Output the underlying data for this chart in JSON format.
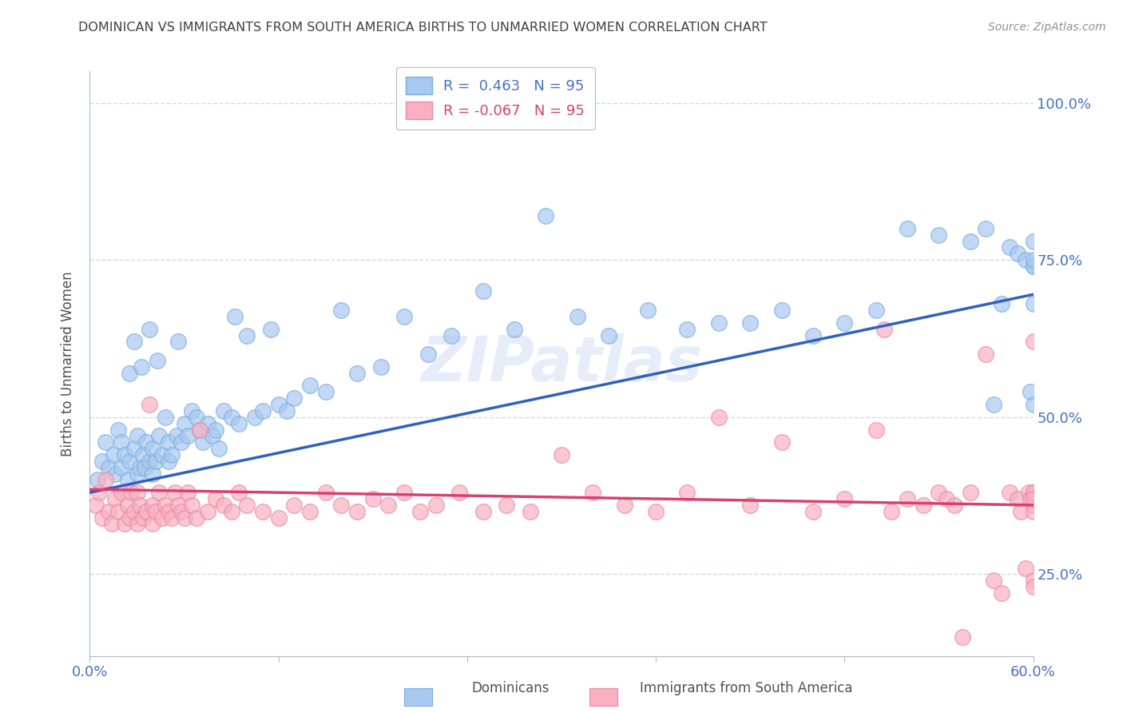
{
  "title": "DOMINICAN VS IMMIGRANTS FROM SOUTH AMERICA BIRTHS TO UNMARRIED WOMEN CORRELATION CHART",
  "source": "Source: ZipAtlas.com",
  "ylabel": "Births to Unmarried Women",
  "ytick_labels": [
    "25.0%",
    "50.0%",
    "75.0%",
    "100.0%"
  ],
  "ytick_values": [
    0.25,
    0.5,
    0.75,
    1.0
  ],
  "xlim": [
    0.0,
    0.6
  ],
  "ylim": [
    0.12,
    1.05
  ],
  "blue_R": 0.463,
  "blue_N": 95,
  "pink_R": -0.067,
  "pink_N": 95,
  "legend_label1": "Dominicans",
  "legend_label2": "Immigrants from South America",
  "watermark": "ZIPatlas",
  "dot_color_blue": "#a8c8f0",
  "dot_edge_blue": "#7aaee0",
  "dot_color_pink": "#f8b0c0",
  "dot_edge_pink": "#e888a8",
  "line_color_blue": "#3060c0",
  "line_color_pink": "#d84070",
  "title_color": "#404040",
  "source_color": "#909090",
  "axis_label_color": "#4472c4",
  "ytick_color": "#4472c4",
  "xtick_color": "#4472c4",
  "grid_color": "#d0d8e8",
  "background_color": "#ffffff",
  "blue_line_x0": 0.0,
  "blue_line_y0": 0.38,
  "blue_line_x1": 0.6,
  "blue_line_y1": 0.695,
  "pink_line_x0": 0.0,
  "pink_line_y0": 0.385,
  "pink_line_x1": 0.6,
  "pink_line_y1": 0.36,
  "blue_dots_x": [
    0.005,
    0.008,
    0.01,
    0.012,
    0.015,
    0.016,
    0.018,
    0.02,
    0.02,
    0.022,
    0.024,
    0.025,
    0.025,
    0.028,
    0.028,
    0.03,
    0.03,
    0.032,
    0.033,
    0.034,
    0.035,
    0.036,
    0.038,
    0.038,
    0.04,
    0.04,
    0.042,
    0.043,
    0.044,
    0.046,
    0.048,
    0.05,
    0.05,
    0.052,
    0.055,
    0.056,
    0.058,
    0.06,
    0.062,
    0.065,
    0.068,
    0.07,
    0.072,
    0.075,
    0.078,
    0.08,
    0.082,
    0.085,
    0.09,
    0.092,
    0.095,
    0.1,
    0.105,
    0.11,
    0.115,
    0.12,
    0.125,
    0.13,
    0.14,
    0.15,
    0.16,
    0.17,
    0.185,
    0.2,
    0.215,
    0.23,
    0.25,
    0.27,
    0.29,
    0.31,
    0.33,
    0.355,
    0.38,
    0.4,
    0.42,
    0.44,
    0.46,
    0.48,
    0.5,
    0.52,
    0.54,
    0.56,
    0.57,
    0.575,
    0.58,
    0.585,
    0.59,
    0.595,
    0.598,
    0.6,
    0.6,
    0.6,
    0.6,
    0.6,
    0.6
  ],
  "blue_dots_y": [
    0.4,
    0.43,
    0.46,
    0.42,
    0.44,
    0.41,
    0.48,
    0.42,
    0.46,
    0.44,
    0.4,
    0.43,
    0.57,
    0.45,
    0.62,
    0.41,
    0.47,
    0.42,
    0.58,
    0.44,
    0.42,
    0.46,
    0.43,
    0.64,
    0.41,
    0.45,
    0.43,
    0.59,
    0.47,
    0.44,
    0.5,
    0.43,
    0.46,
    0.44,
    0.47,
    0.62,
    0.46,
    0.49,
    0.47,
    0.51,
    0.5,
    0.48,
    0.46,
    0.49,
    0.47,
    0.48,
    0.45,
    0.51,
    0.5,
    0.66,
    0.49,
    0.63,
    0.5,
    0.51,
    0.64,
    0.52,
    0.51,
    0.53,
    0.55,
    0.54,
    0.67,
    0.57,
    0.58,
    0.66,
    0.6,
    0.63,
    0.7,
    0.64,
    0.82,
    0.66,
    0.63,
    0.67,
    0.64,
    0.65,
    0.65,
    0.67,
    0.63,
    0.65,
    0.67,
    0.8,
    0.79,
    0.78,
    0.8,
    0.52,
    0.68,
    0.77,
    0.76,
    0.75,
    0.54,
    0.52,
    0.68,
    0.74,
    0.78,
    0.74,
    0.75
  ],
  "pink_dots_x": [
    0.004,
    0.006,
    0.008,
    0.01,
    0.012,
    0.014,
    0.016,
    0.018,
    0.02,
    0.022,
    0.024,
    0.025,
    0.026,
    0.028,
    0.03,
    0.03,
    0.032,
    0.034,
    0.036,
    0.038,
    0.04,
    0.04,
    0.042,
    0.044,
    0.046,
    0.048,
    0.05,
    0.052,
    0.054,
    0.056,
    0.058,
    0.06,
    0.062,
    0.065,
    0.068,
    0.07,
    0.075,
    0.08,
    0.085,
    0.09,
    0.095,
    0.1,
    0.11,
    0.12,
    0.13,
    0.14,
    0.15,
    0.16,
    0.17,
    0.18,
    0.19,
    0.2,
    0.21,
    0.22,
    0.235,
    0.25,
    0.265,
    0.28,
    0.3,
    0.32,
    0.34,
    0.36,
    0.38,
    0.4,
    0.42,
    0.44,
    0.46,
    0.48,
    0.5,
    0.505,
    0.51,
    0.52,
    0.53,
    0.54,
    0.545,
    0.55,
    0.555,
    0.56,
    0.57,
    0.575,
    0.58,
    0.585,
    0.59,
    0.592,
    0.595,
    0.597,
    0.598,
    0.6,
    0.6,
    0.6,
    0.6,
    0.6,
    0.6,
    0.6,
    0.6
  ],
  "pink_dots_y": [
    0.36,
    0.38,
    0.34,
    0.4,
    0.35,
    0.33,
    0.37,
    0.35,
    0.38,
    0.33,
    0.36,
    0.34,
    0.38,
    0.35,
    0.33,
    0.38,
    0.36,
    0.34,
    0.35,
    0.52,
    0.33,
    0.36,
    0.35,
    0.38,
    0.34,
    0.36,
    0.35,
    0.34,
    0.38,
    0.36,
    0.35,
    0.34,
    0.38,
    0.36,
    0.34,
    0.48,
    0.35,
    0.37,
    0.36,
    0.35,
    0.38,
    0.36,
    0.35,
    0.34,
    0.36,
    0.35,
    0.38,
    0.36,
    0.35,
    0.37,
    0.36,
    0.38,
    0.35,
    0.36,
    0.38,
    0.35,
    0.36,
    0.35,
    0.44,
    0.38,
    0.36,
    0.35,
    0.38,
    0.5,
    0.36,
    0.46,
    0.35,
    0.37,
    0.48,
    0.64,
    0.35,
    0.37,
    0.36,
    0.38,
    0.37,
    0.36,
    0.15,
    0.38,
    0.6,
    0.24,
    0.22,
    0.38,
    0.37,
    0.35,
    0.26,
    0.38,
    0.37,
    0.36,
    0.38,
    0.35,
    0.62,
    0.24,
    0.38,
    0.23,
    0.37
  ]
}
